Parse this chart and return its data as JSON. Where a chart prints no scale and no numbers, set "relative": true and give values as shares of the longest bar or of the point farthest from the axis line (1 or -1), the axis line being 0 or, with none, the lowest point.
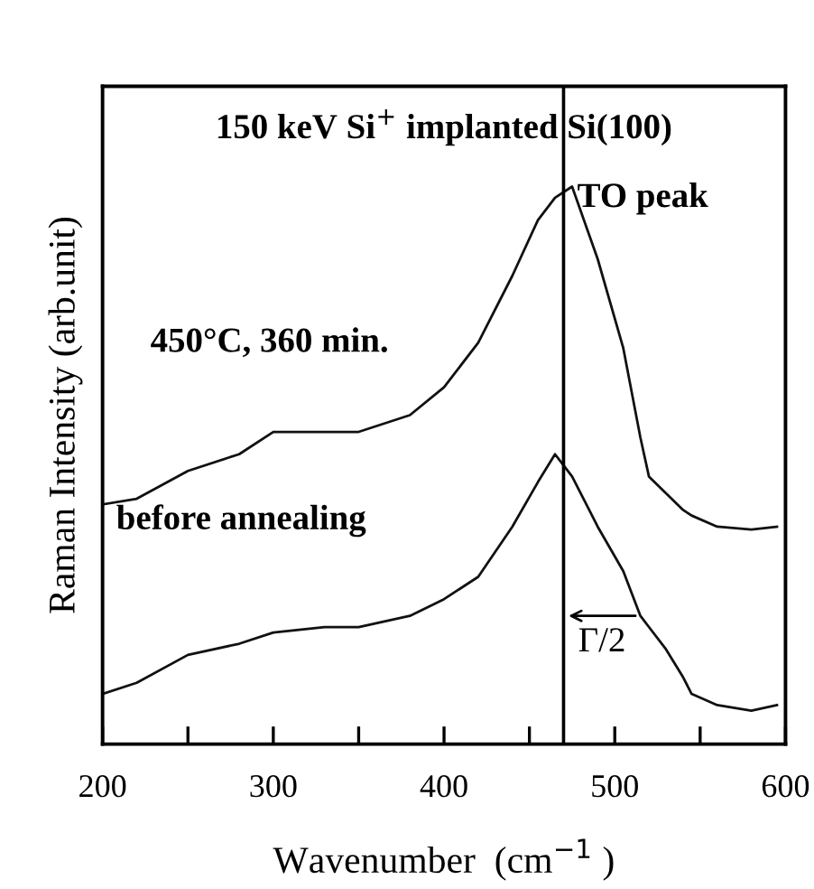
{
  "chart_data": {
    "type": "line",
    "relative": true,
    "xlabel": "Wavenumber  (cm$^{−1}$ )",
    "ylabel": "Raman Intensity (arb.unit)",
    "x": [
      200,
      220,
      250,
      280,
      300,
      330,
      350,
      380,
      400,
      420,
      440,
      455,
      465,
      475,
      490,
      505,
      515,
      520,
      530,
      540,
      545,
      560,
      580,
      595
    ],
    "series": [
      {
        "color": "#111111",
        "values": [
          0.43,
          0.44,
          0.49,
          0.52,
          0.56,
          0.56,
          0.56,
          0.59,
          0.64,
          0.72,
          0.84,
          0.94,
          0.98,
          1.0,
          0.87,
          0.71,
          0.55,
          0.48,
          0.45,
          0.42,
          0.41,
          0.39,
          0.385,
          0.39
        ]
      },
      {
        "color": "#111111",
        "values": [
          0.09,
          0.11,
          0.16,
          0.18,
          0.2,
          0.21,
          0.21,
          0.23,
          0.26,
          0.3,
          0.39,
          0.47,
          0.52,
          0.48,
          0.39,
          0.31,
          0.23,
          0.21,
          0.17,
          0.12,
          0.09,
          0.07,
          0.06,
          0.07
        ]
      }
    ],
    "xlim": [
      200,
      600
    ],
    "xticks": [
      200,
      {
        "value": 250,
        "label": null
      },
      300,
      {
        "value": 350,
        "label": null
      },
      400,
      {
        "value": 450,
        "label": null
      },
      500,
      {
        "value": 550,
        "label": null
      },
      600
    ],
    "ref_lines": [
      {
        "axis": "x",
        "value": 470,
        "label": "TO peak"
      }
    ],
    "title": "150 keV Si$^{+}$ implanted Si(100)",
    "annotations": [
      "450°C, 360 min.",
      "before annealing",
      {
        "text": "Γ/2",
        "x": 515,
        "y": 0.23
      }
    ]
  }
}
